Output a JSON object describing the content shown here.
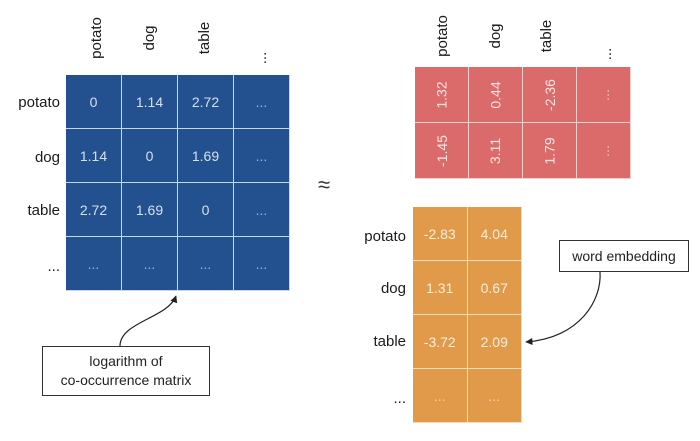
{
  "left_matrix": {
    "columns": [
      "potato",
      "dog",
      "table",
      "..."
    ],
    "rows": [
      "potato",
      "dog",
      "table",
      "..."
    ],
    "cells": [
      [
        "0",
        "1.14",
        "2.72",
        "..."
      ],
      [
        "1.14",
        "0",
        "1.69",
        "..."
      ],
      [
        "2.72",
        "1.69",
        "0",
        "..."
      ],
      [
        "...",
        "...",
        "...",
        "..."
      ]
    ],
    "color": "#23508f"
  },
  "approx_symbol": "≈",
  "top_matrix": {
    "columns": [
      "potato",
      "dog",
      "table",
      "..."
    ],
    "cells": [
      [
        "1.32",
        "0.44",
        "-2.36",
        "..."
      ],
      [
        "-1.45",
        "3.11",
        "1.79",
        "..."
      ]
    ],
    "color": "#db6b6b"
  },
  "bottom_matrix": {
    "rows": [
      "potato",
      "dog",
      "table",
      "..."
    ],
    "cells": [
      [
        "-2.83",
        "4.04"
      ],
      [
        "1.31",
        "0.67"
      ],
      [
        "-3.72",
        "2.09"
      ],
      [
        "...",
        "..."
      ]
    ],
    "color": "#e09a4a"
  },
  "callouts": {
    "log_matrix_line1": "logarithm of",
    "log_matrix_line2": "co-occurrence matrix",
    "word_embedding": "word embedding"
  }
}
